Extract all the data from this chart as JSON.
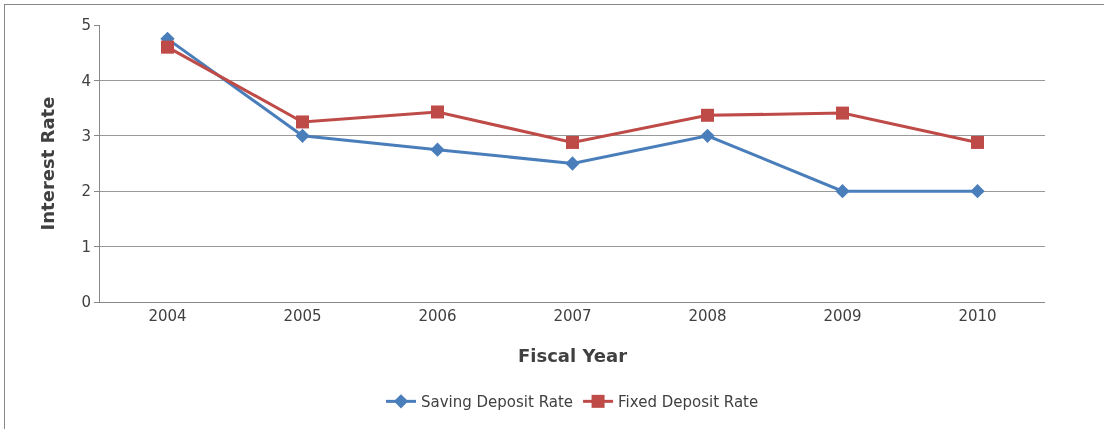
{
  "chart_data": {
    "type": "line",
    "xlabel": "Fiscal Year",
    "ylabel": "Interest Rate",
    "categories": [
      "2004",
      "2005",
      "2006",
      "2007",
      "2008",
      "2009",
      "2010"
    ],
    "series": [
      {
        "name": "Saving Deposit Rate",
        "color": "#4a7ebb",
        "marker": "diamond",
        "values": [
          4.75,
          3.0,
          2.75,
          2.5,
          3.0,
          2.0,
          2.0
        ]
      },
      {
        "name": "Fixed Deposit Rate",
        "color": "#be4b48",
        "marker": "square",
        "values": [
          4.6,
          3.25,
          3.43,
          2.88,
          3.37,
          3.41,
          2.88
        ]
      }
    ],
    "ylim": [
      0,
      5
    ],
    "yticks": [
      0,
      1,
      2,
      3,
      4,
      5
    ],
    "grid": "y",
    "legend": "bottom"
  }
}
